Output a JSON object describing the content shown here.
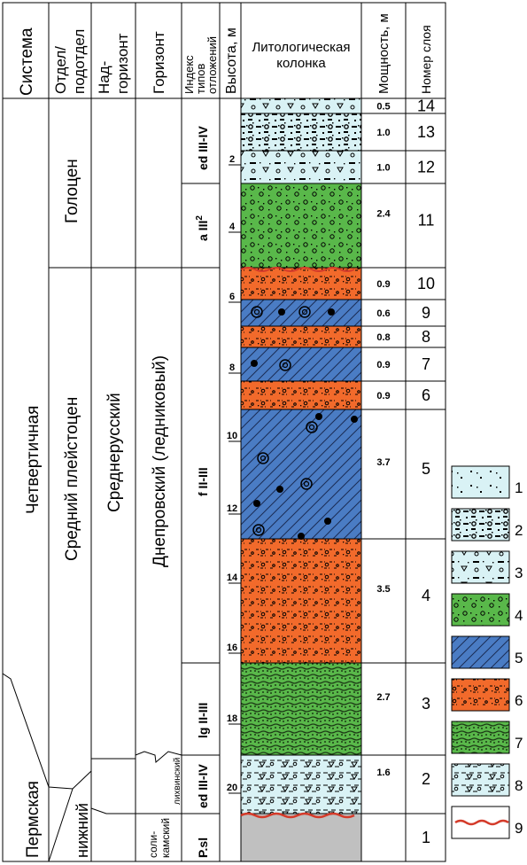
{
  "headers": {
    "system": "Система",
    "division_1": "Отдел/",
    "division_2": "подотдел",
    "superhorizon_1": "Над-",
    "superhorizon_2": "горизонт",
    "horizon": "Горизонт",
    "index_1": "Индекс",
    "index_2": "типов",
    "index_3": "отложений",
    "height": "Высота, м",
    "column_1": "Литологическая",
    "column_2": "колонка",
    "thickness": "Мощность, м",
    "layer_no": "Номер слоя"
  },
  "stratigraphy": {
    "system_quaternary": "Четвертичная",
    "system_permian": "Пермская",
    "division_holocene": "Голоцен",
    "division_middle_pleistocene": "Средний плейстоцен",
    "division_lower": "нижний",
    "superhorizon_middle_russian": "Среднерусский",
    "horizon_dnieper": "Днепровский (ледниковый)",
    "horizon_likhvin": "лихвинский",
    "horizon_solikamsk_1": "соли-",
    "horizon_solikamsk_2": "камский"
  },
  "indices": [
    {
      "text": "ed III-IV"
    },
    {
      "text": "a III",
      "sup": "2"
    },
    {
      "text": "f II-III"
    },
    {
      "text": "lg II-III"
    },
    {
      "text": "ed III-IV"
    },
    {
      "text": "P.sl"
    }
  ],
  "height_ticks": [
    "2",
    "4",
    "6",
    "8",
    "10",
    "12",
    "14",
    "16",
    "18",
    "20"
  ],
  "layers": [
    {
      "no": "14",
      "thickness": "0.5",
      "pattern": 3
    },
    {
      "no": "13",
      "thickness": "1.0",
      "pattern": 2
    },
    {
      "no": "12",
      "thickness": "1.0",
      "pattern": 3
    },
    {
      "no": "11",
      "thickness": "2.4",
      "pattern": 4
    },
    {
      "no": "10",
      "thickness": "0.9",
      "pattern": 6
    },
    {
      "no": "9",
      "thickness": "0.6",
      "pattern": 5
    },
    {
      "no": "8",
      "thickness": "0.8",
      "pattern": 6
    },
    {
      "no": "7",
      "thickness": "0.9",
      "pattern": 5
    },
    {
      "no": "6",
      "thickness": "0.9",
      "pattern": 6
    },
    {
      "no": "5",
      "thickness": "3.7",
      "pattern": 5
    },
    {
      "no": "4",
      "thickness": "3.5",
      "pattern": 6
    },
    {
      "no": "3",
      "thickness": "2.7",
      "pattern": 7
    },
    {
      "no": "2",
      "thickness": "1.6",
      "pattern": 8
    },
    {
      "no": "1",
      "thickness": "",
      "pattern": 0
    }
  ],
  "legend": [
    "1",
    "2",
    "3",
    "4",
    "5",
    "6",
    "7",
    "8",
    "9"
  ],
  "colors": {
    "light_blue": "#d9f2f5",
    "green": "#59b84a",
    "orange": "#f26a2b",
    "blue": "#4a7cc4",
    "grey": "#c0c0c0",
    "contact_red": "#d43b2a"
  }
}
